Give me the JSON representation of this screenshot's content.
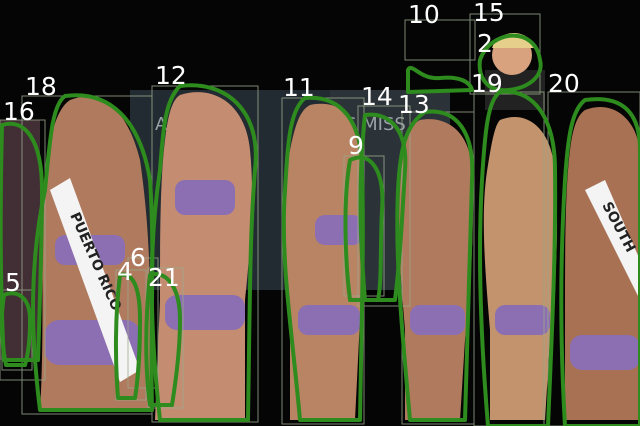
{
  "image": {
    "description_colors": {
      "outline": "#2e8b1e",
      "box": "#9aa88c",
      "label_text": "#ffffff",
      "background": "#050505"
    }
  },
  "annotations": [
    {
      "label": "10",
      "kind": "bbox+mask"
    },
    {
      "label": "15",
      "kind": "bbox+mask"
    },
    {
      "label": "2",
      "kind": "bbox+mask"
    },
    {
      "label": "18",
      "kind": "bbox+mask"
    },
    {
      "label": "12",
      "kind": "bbox+mask"
    },
    {
      "label": "11",
      "kind": "bbox+mask"
    },
    {
      "label": "14",
      "kind": "bbox+mask"
    },
    {
      "label": "13",
      "kind": "bbox+mask"
    },
    {
      "label": "19",
      "kind": "bbox+mask"
    },
    {
      "label": "20",
      "kind": "bbox+mask"
    },
    {
      "label": "16",
      "kind": "bbox+mask"
    },
    {
      "label": "9",
      "kind": "bbox+mask"
    },
    {
      "label": "5",
      "kind": "bbox+mask"
    },
    {
      "label": "4",
      "kind": "bbox+mask"
    },
    {
      "label": "6",
      "kind": "bbox+mask"
    },
    {
      "label": "21",
      "kind": "bbox+mask"
    }
  ],
  "background_text": [
    {
      "text": "AL WE",
      "name": "backdrop-text-left"
    },
    {
      "text": "S MISS",
      "name": "backdrop-text-right"
    }
  ],
  "sashes": [
    {
      "text": "PUERTO RICO",
      "name": "sash-left"
    },
    {
      "text": "SOUTH",
      "name": "sash-right"
    }
  ]
}
